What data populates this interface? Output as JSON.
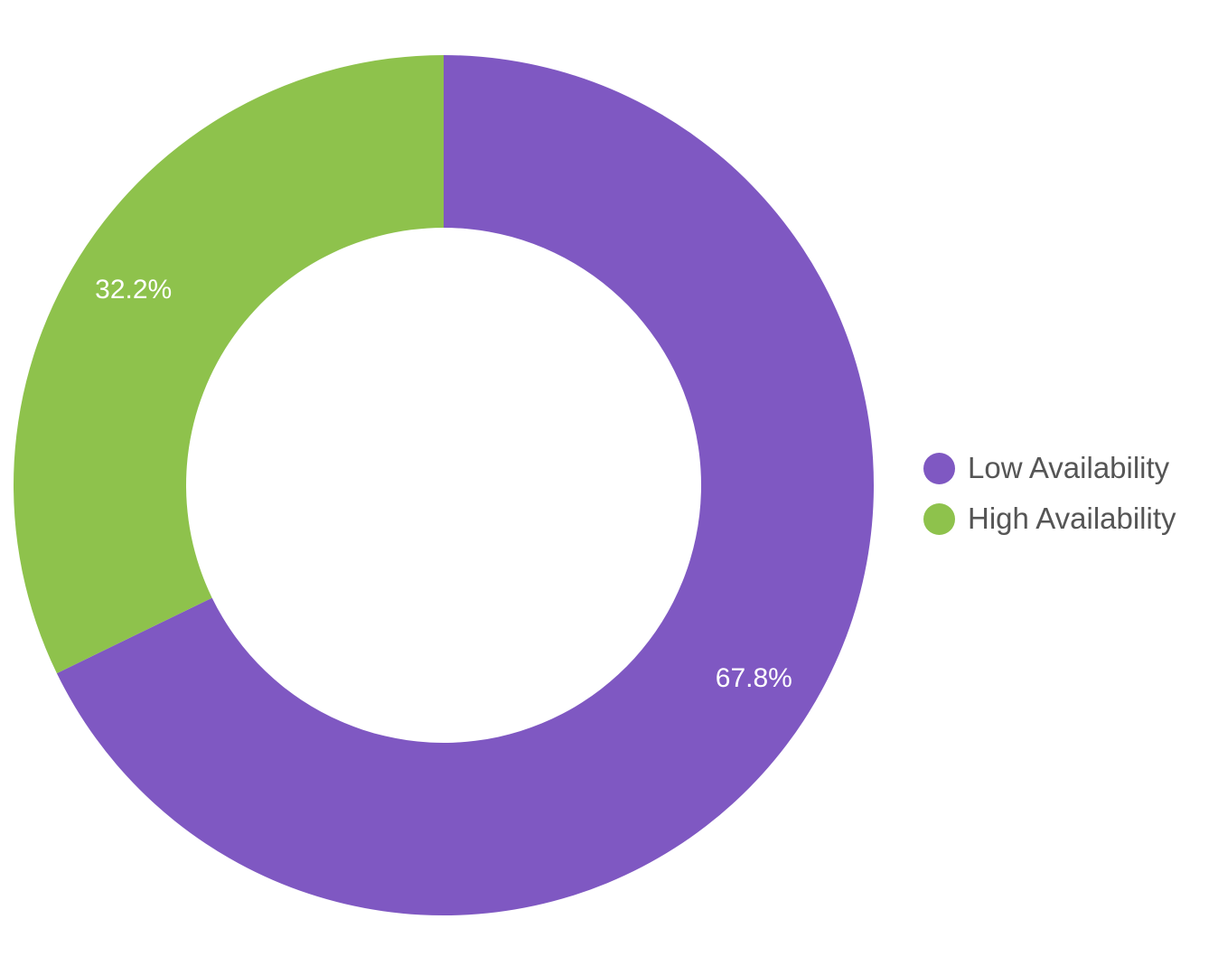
{
  "chart_data": {
    "type": "pie",
    "variant": "donut",
    "categories": [
      "Low Availability",
      "High Availability"
    ],
    "values": [
      67.8,
      32.2
    ],
    "value_labels": [
      "67.8%",
      "32.2%"
    ],
    "colors": [
      "#7f58c2",
      "#8ec24c"
    ],
    "title": "",
    "legend": "right",
    "label_color": "#ffffff"
  }
}
